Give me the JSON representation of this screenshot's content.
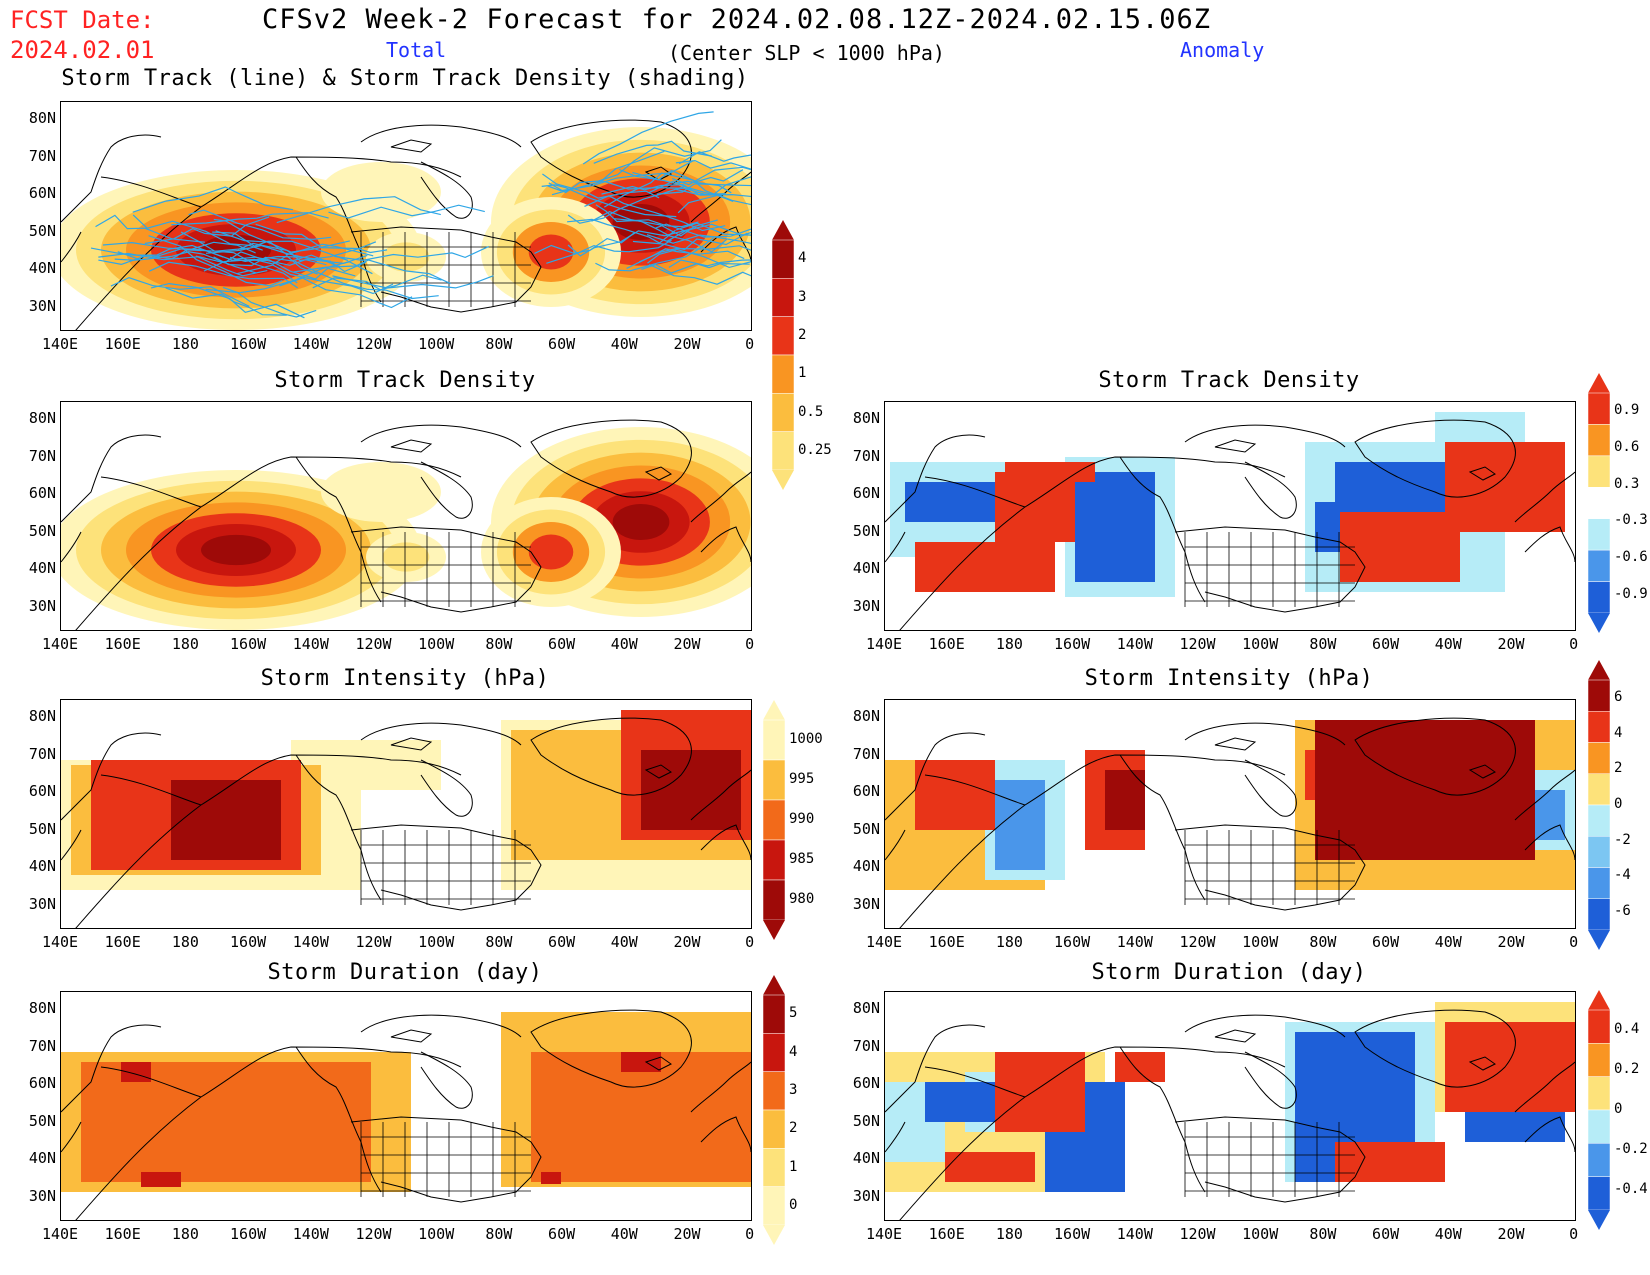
{
  "header": {
    "fcst_label": "FCST Date:",
    "fcst_date": "2024.02.01",
    "title": "CFSv2 Week-2 Forecast for 2024.02.08.12Z-2024.02.15.06Z",
    "total_label": "Total",
    "condition": "(Center SLP < 1000 hPa)",
    "anomaly_label": "Anomaly"
  },
  "panels": {
    "track_total": {
      "title": "Storm Track (line) & Storm Track Density (shading)"
    },
    "density_total": {
      "title": "Storm Track Density"
    },
    "density_anom": {
      "title": "Storm Track Density"
    },
    "intensity_total": {
      "title": "Storm Intensity (hPa)"
    },
    "intensity_anom": {
      "title": "Storm Intensity (hPa)"
    },
    "duration_total": {
      "title": "Storm Duration (day)"
    },
    "duration_anom": {
      "title": "Storm Duration (day)"
    }
  },
  "axes": {
    "lat_labels": [
      "80N",
      "70N",
      "60N",
      "50N",
      "40N",
      "30N"
    ],
    "lon_labels": [
      "140E",
      "160E",
      "180",
      "160W",
      "140W",
      "120W",
      "100W",
      "80W",
      "60W",
      "40W",
      "20W",
      "0"
    ]
  },
  "colorbars": {
    "density_total": {
      "labels": [
        "4",
        "3",
        "2",
        "1",
        "0.5",
        "0.25"
      ]
    },
    "density_anom": {
      "labels": [
        "0.9",
        "0.6",
        "0.3",
        "-0.3",
        "-0.6",
        "-0.9"
      ]
    },
    "intensity_total": {
      "labels": [
        "1000",
        "995",
        "990",
        "985",
        "980"
      ]
    },
    "intensity_anom": {
      "labels": [
        "6",
        "4",
        "2",
        "0",
        "-2",
        "-4",
        "-6"
      ]
    },
    "duration_total": {
      "labels": [
        "5",
        "4",
        "3",
        "2",
        "1",
        "0"
      ]
    },
    "duration_anom": {
      "labels": [
        "0.4",
        "0.2",
        "0",
        "-0.2",
        "-0.4"
      ]
    }
  },
  "colors": {
    "warm": [
      "#fff5b8",
      "#fde27a",
      "#fbbd3e",
      "#f99522",
      "#f26a1a",
      "#e83418",
      "#c8160e",
      "#9e0a08"
    ],
    "cool": [
      "#b6ecf7",
      "#7cc6f2",
      "#4a96ea",
      "#1e5fd8"
    ],
    "track_line": "#2fa6e6"
  }
}
